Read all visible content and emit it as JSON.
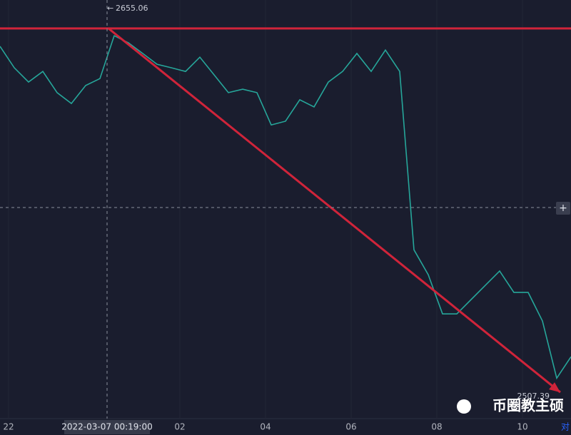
{
  "chart_data": {
    "type": "line",
    "values": [
      2647.8,
      2639.1,
      2633.3,
      2637.6,
      2629.0,
      2624.6,
      2631.9,
      2634.7,
      2652.1,
      2649.2,
      2644.9,
      2640.5,
      2639.1,
      2637.6,
      2643.4,
      2636.2,
      2629.0,
      2630.4,
      2629.0,
      2615.9,
      2617.4,
      2626.1,
      2623.2,
      2633.3,
      2637.6,
      2644.9,
      2637.6,
      2646.3,
      2637.6,
      2565.2,
      2555.1,
      2539.2,
      2539.2,
      2545.0,
      2550.8,
      2556.6,
      2547.9,
      2547.9,
      2536.3,
      2513.1,
      2521.8
    ],
    "color": "#26a69a",
    "xlim": [
      0,
      40
    ],
    "ylim": [
      2496.7,
      2666.6
    ],
    "xticks": [
      {
        "value": 0.6,
        "label": "22"
      },
      {
        "value": 12.6,
        "label": "02"
      },
      {
        "value": 18.6,
        "label": "04"
      },
      {
        "value": 24.6,
        "label": "06"
      },
      {
        "value": 30.6,
        "label": "08"
      },
      {
        "value": 36.6,
        "label": "10"
      }
    ],
    "high": 2655.06,
    "low": 2507.39,
    "trend_color": "#d0243a",
    "crosshair_label": "2022-03-07 00:19:00",
    "watermark": "币圈教主硕",
    "corner_button": "对"
  }
}
